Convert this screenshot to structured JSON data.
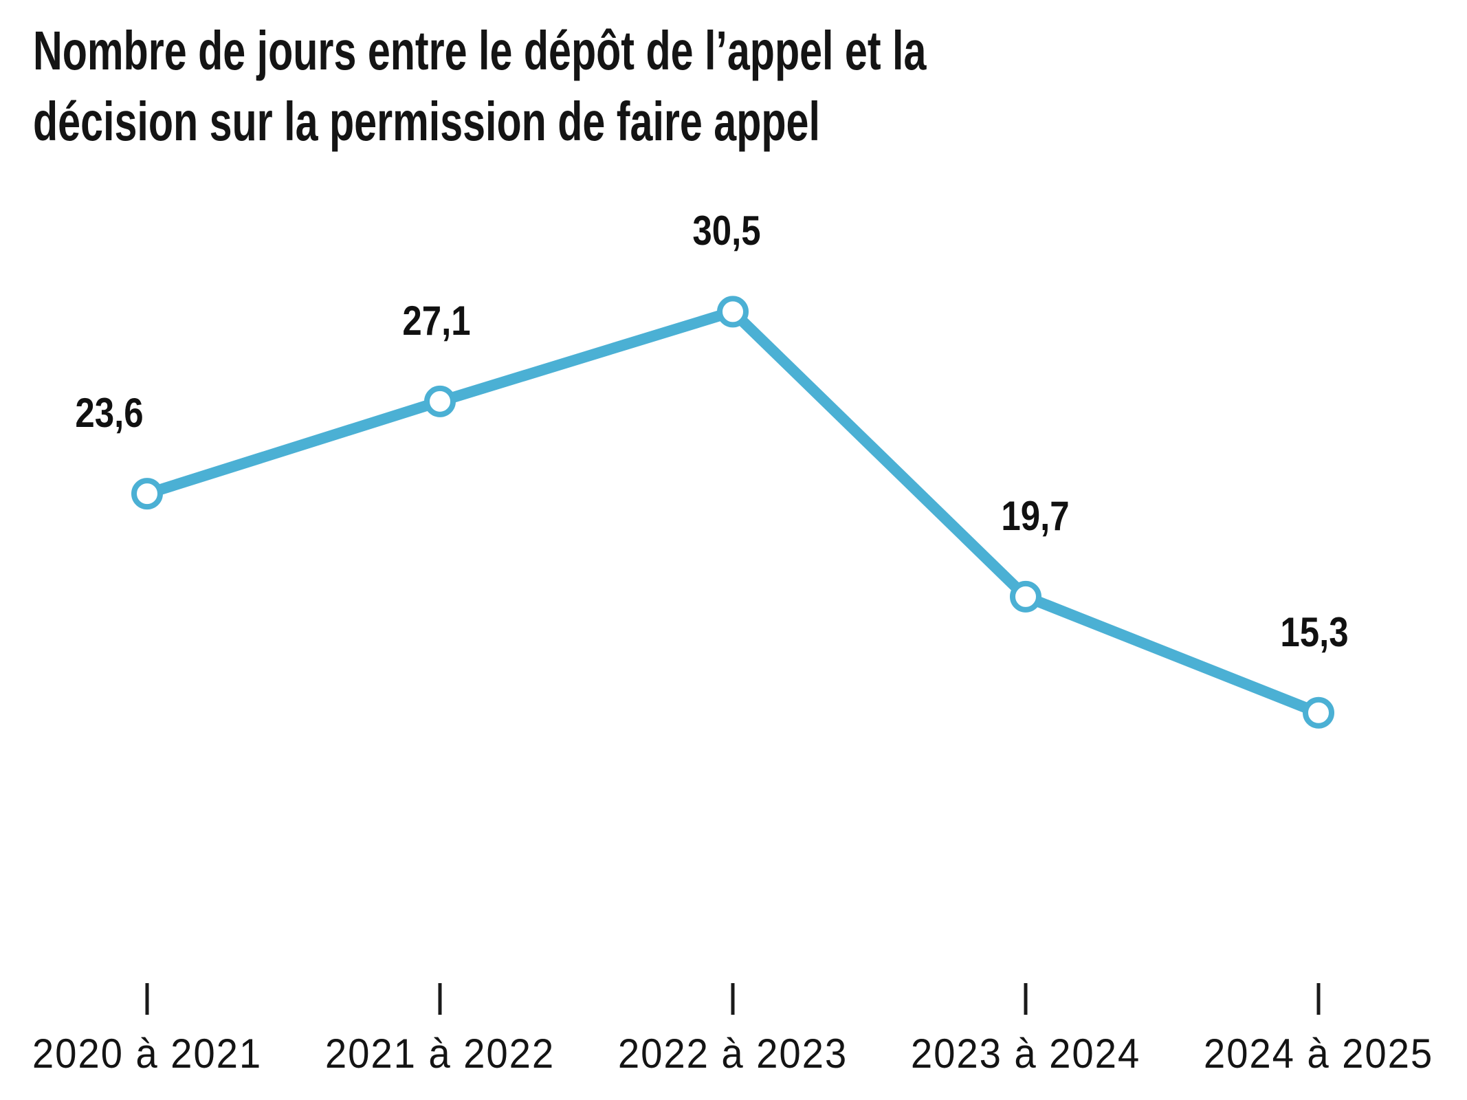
{
  "title_lines": [
    "Nombre de jours entre le dépôt de l’appel et la",
    "décision sur la permission de faire appel"
  ],
  "chart_data": {
    "type": "line",
    "title": "Nombre de jours entre le dépôt de l’appel et la décision sur la permission de faire appel",
    "categories": [
      "2020 à 2021",
      "2021 à 2022",
      "2022 à 2023",
      "2023 à 2024",
      "2024 à 2025"
    ],
    "values": [
      23.6,
      27.1,
      30.5,
      19.7,
      15.3
    ],
    "value_labels": [
      "23,6",
      "27,1",
      "30,5",
      "19,7",
      "15,3"
    ],
    "xlabel": "",
    "ylabel": "",
    "ylim": [
      13,
      34
    ],
    "grid": false,
    "legend": false,
    "line_color": "#4BB0D4",
    "marker_fill": "#FFFFFF",
    "tick_color": "#1A1A1A",
    "text_color": "#141414",
    "background": "#FFFFFF"
  }
}
